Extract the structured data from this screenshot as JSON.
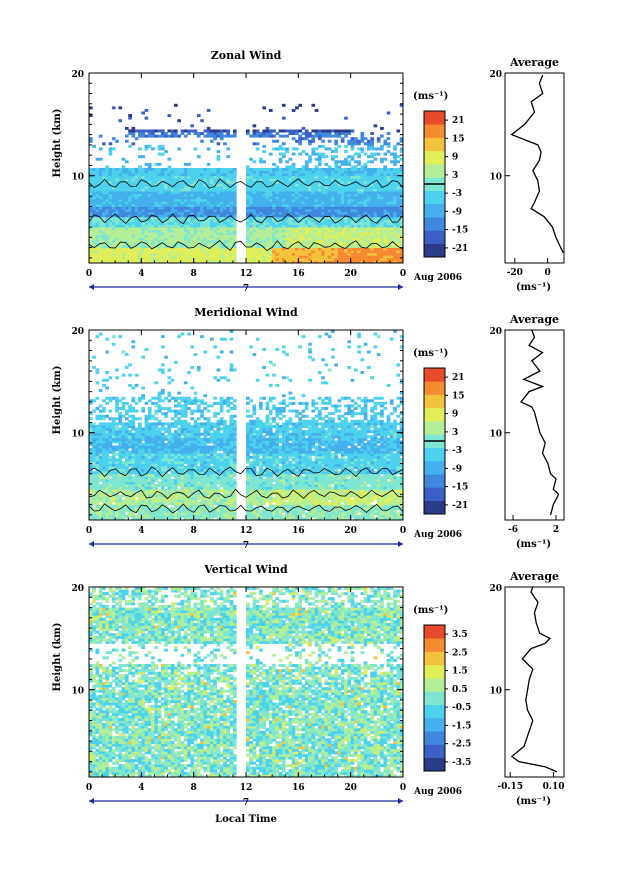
{
  "colors": {
    "scale": [
      "#2a3c88",
      "#3c5fc6",
      "#3f88de",
      "#45b0ec",
      "#4dd2ee",
      "#7fe6d2",
      "#b4ee96",
      "#e0ee58",
      "#f4c33c",
      "#f58a33",
      "#e84a2c"
    ],
    "missing": "#ffffff"
  },
  "common": {
    "xlabel": "Local Time",
    "date_label": "Aug 2006",
    "day_label": "7",
    "x_ticks": [
      "0",
      "4",
      "8",
      "12",
      "16",
      "20",
      "0"
    ],
    "y_ticks": [
      "20",
      "10"
    ],
    "unit": "(ms⁻¹)"
  },
  "chart_data": [
    {
      "type": "heatmap",
      "id": "zonal",
      "title": "Zonal Wind",
      "ylabel": "Height (km)",
      "xlabel": "",
      "xlim": [
        0,
        24
      ],
      "ylim": [
        1.5,
        20
      ],
      "color_range": [
        -24,
        24
      ],
      "colorbar_ticks": [
        "21",
        "15",
        "9",
        "3",
        "-3",
        "-9",
        "-15",
        "-21"
      ],
      "colorbar_values": [
        21,
        15,
        9,
        3,
        -3,
        -9,
        -15,
        -21
      ],
      "contour_level": 0,
      "profile": [
        [
          2.5,
          9.5
        ],
        [
          3,
          8
        ],
        [
          4,
          5
        ],
        [
          5,
          3
        ],
        [
          6,
          -2
        ],
        [
          6.8,
          -10
        ],
        [
          7.4,
          -8
        ],
        [
          8.5,
          -5
        ],
        [
          9.5,
          -6
        ],
        [
          10.5,
          -9
        ],
        [
          11.5,
          -5
        ],
        [
          12.3,
          -4
        ],
        [
          13,
          -6
        ],
        [
          14,
          -22
        ],
        [
          15,
          -14
        ],
        [
          16.2,
          -8
        ],
        [
          17.2,
          -10
        ],
        [
          18,
          -3
        ],
        [
          19,
          -5
        ],
        [
          19.8,
          -3
        ]
      ],
      "profile_title": "Average",
      "profile_xlabel": "(ms⁻¹)",
      "profile_xticks": [
        "-20",
        "0"
      ],
      "profile_xtick_values": [
        -20,
        0
      ],
      "profile_xlim": [
        -26,
        10
      ],
      "day": "7",
      "date": "Aug 2006"
    },
    {
      "type": "heatmap",
      "id": "meridional",
      "title": "Meridional Wind",
      "ylabel": "Height (km)",
      "xlabel": "",
      "xlim": [
        0,
        24
      ],
      "ylim": [
        1.5,
        20
      ],
      "color_range": [
        -24,
        24
      ],
      "colorbar_ticks": [
        "21",
        "15",
        "9",
        "3",
        "-3",
        "-9",
        "-15",
        "-21"
      ],
      "colorbar_values": [
        21,
        15,
        9,
        3,
        -3,
        -9,
        -15,
        -21
      ],
      "contour_level": 0,
      "profile": [
        [
          2,
          1
        ],
        [
          3,
          1.5
        ],
        [
          3.5,
          2
        ],
        [
          4,
          2.5
        ],
        [
          4.5,
          1.5
        ],
        [
          5.5,
          2
        ],
        [
          6,
          1
        ],
        [
          7,
          0.5
        ],
        [
          8,
          -0.5
        ],
        [
          9,
          0
        ],
        [
          10,
          -1
        ],
        [
          11,
          -1.5
        ],
        [
          12,
          -2
        ],
        [
          12.5,
          -2.5
        ],
        [
          13,
          -4.5
        ],
        [
          14,
          -3
        ],
        [
          14.5,
          -0.5
        ],
        [
          15.2,
          -4
        ],
        [
          16,
          -1
        ],
        [
          17,
          -2.5
        ],
        [
          17.8,
          -0.5
        ],
        [
          18.5,
          -3
        ],
        [
          19.3,
          -2
        ],
        [
          20,
          -2.5
        ]
      ],
      "profile_title": "Average",
      "profile_xlabel": "(ms⁻¹)",
      "profile_xticks": [
        "-6",
        "2"
      ],
      "profile_xtick_values": [
        -6,
        2
      ],
      "profile_xlim": [
        -7.5,
        3.5
      ],
      "day": "7",
      "date": "Aug 2006"
    },
    {
      "type": "heatmap",
      "id": "vertical",
      "title": "Vertical Wind",
      "ylabel": "Height (km)",
      "xlabel": "Local Time",
      "xlim": [
        0,
        24
      ],
      "ylim": [
        1.5,
        20
      ],
      "color_range": [
        -4,
        4
      ],
      "colorbar_ticks": [
        "3.5",
        "2.5",
        "1.5",
        "0.5",
        "-0.5",
        "-1.5",
        "-2.5",
        "-3.5"
      ],
      "colorbar_values": [
        3.5,
        2.5,
        1.5,
        0.5,
        -0.5,
        -1.5,
        -2.5,
        -3.5
      ],
      "contour_level": null,
      "profile": [
        [
          2,
          0.12
        ],
        [
          2.5,
          0.05
        ],
        [
          3,
          -0.1
        ],
        [
          3.5,
          -0.14
        ],
        [
          4.5,
          -0.07
        ],
        [
          6,
          -0.04
        ],
        [
          7,
          -0.02
        ],
        [
          8,
          -0.05
        ],
        [
          9,
          -0.06
        ],
        [
          10,
          -0.05
        ],
        [
          11,
          -0.04
        ],
        [
          12,
          -0.02
        ],
        [
          12.5,
          -0.05
        ],
        [
          13,
          -0.08
        ],
        [
          14,
          -0.03
        ],
        [
          14.5,
          0.05
        ],
        [
          15,
          0.08
        ],
        [
          15.5,
          0.02
        ],
        [
          16.5,
          0.0
        ],
        [
          17.5,
          -0.01
        ],
        [
          18.5,
          0.01
        ],
        [
          19.5,
          -0.03
        ],
        [
          20,
          -0.02
        ]
      ],
      "profile_title": "Average",
      "profile_xlabel": "(ms⁻¹)",
      "profile_xticks": [
        "-0.15",
        "0.10"
      ],
      "profile_xtick_values": [
        -0.15,
        0.1
      ],
      "profile_xlim": [
        -0.18,
        0.16
      ],
      "day": "7",
      "date": "Aug 2006"
    }
  ]
}
